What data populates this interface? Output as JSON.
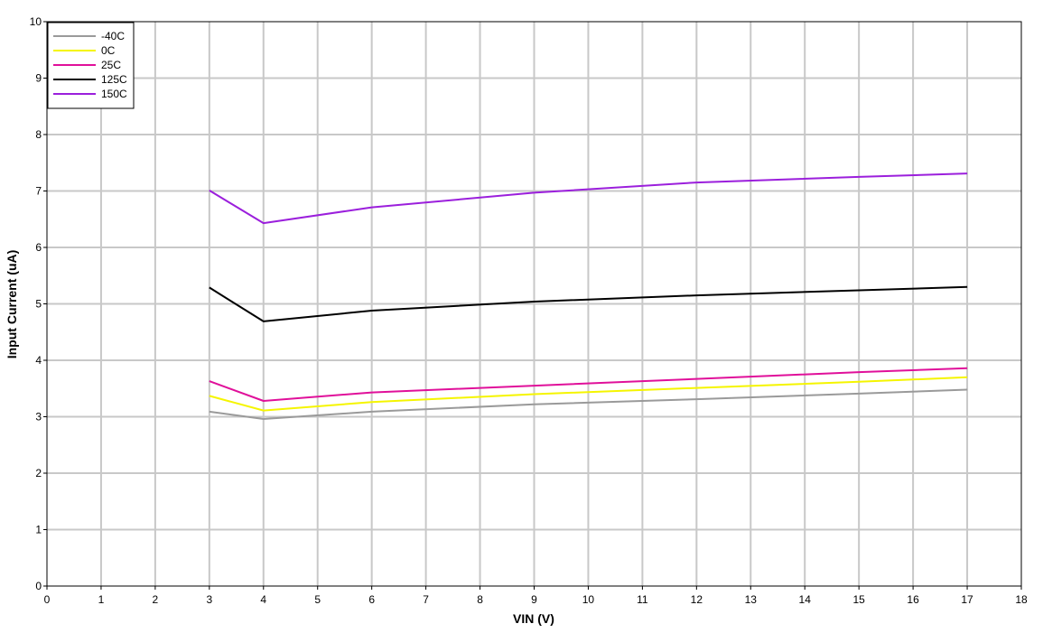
{
  "chart_data": {
    "type": "line",
    "title": "",
    "xlabel": "VIN (V)",
    "ylabel": "Input Current (uA)",
    "xlim": [
      0,
      18
    ],
    "ylim": [
      0,
      10
    ],
    "xticks": [
      "0",
      "1",
      "2",
      "3",
      "4",
      "5",
      "6",
      "7",
      "8",
      "9",
      "10",
      "11",
      "12",
      "13",
      "14",
      "15",
      "16",
      "17",
      "18"
    ],
    "yticks": [
      "0",
      "1",
      "2",
      "3",
      "4",
      "5",
      "6",
      "7",
      "8",
      "9",
      "10"
    ],
    "grid": true,
    "legend_position": "top-left",
    "x": [
      3,
      4,
      6,
      9,
      12,
      15,
      17
    ],
    "series": [
      {
        "name": "-40C",
        "color": "#9a9a9a",
        "values": [
          3.09,
          2.96,
          3.09,
          3.22,
          3.31,
          3.41,
          3.48
        ]
      },
      {
        "name": "0C",
        "color": "#f5f500",
        "values": [
          3.37,
          3.11,
          3.26,
          3.4,
          3.51,
          3.62,
          3.7
        ]
      },
      {
        "name": "25C",
        "color": "#e0109a",
        "values": [
          3.63,
          3.28,
          3.43,
          3.55,
          3.67,
          3.79,
          3.86
        ]
      },
      {
        "name": "125C",
        "color": "#000000",
        "values": [
          5.29,
          4.69,
          4.88,
          5.04,
          5.15,
          5.24,
          5.3
        ]
      },
      {
        "name": "150C",
        "color": "#9b1fdc",
        "values": [
          7.01,
          6.43,
          6.71,
          6.97,
          7.15,
          7.25,
          7.31
        ]
      }
    ]
  }
}
